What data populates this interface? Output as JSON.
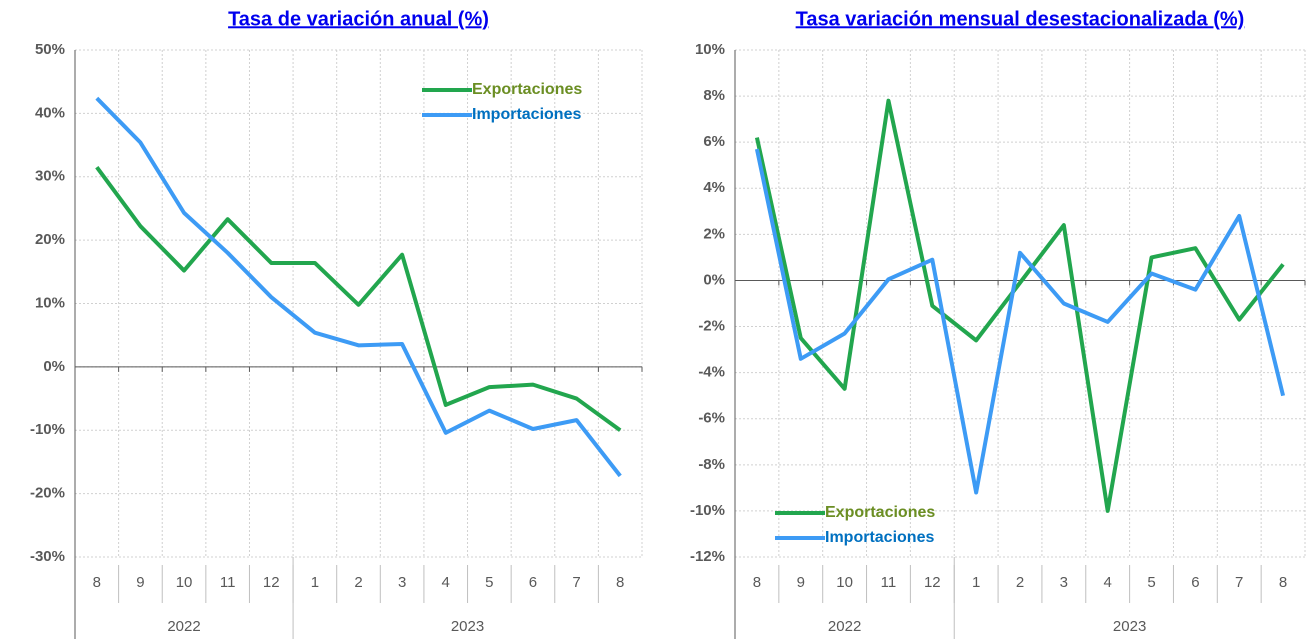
{
  "chart_data": [
    {
      "type": "line",
      "title": "Tasa de variación anual (%)",
      "categories": [
        "8",
        "9",
        "10",
        "11",
        "12",
        "1",
        "2",
        "3",
        "4",
        "5",
        "6",
        "7",
        "8"
      ],
      "groups": [
        {
          "name": "2022",
          "count": 5
        },
        {
          "name": "2023",
          "count": 8
        }
      ],
      "series": [
        {
          "name": "Exportaciones",
          "color": "#22a64e",
          "label_color": "#6b8e23",
          "values": [
            31.5,
            22.2,
            15.2,
            23.3,
            16.4,
            16.4,
            9.8,
            17.7,
            -6.0,
            -3.2,
            -2.8,
            -5.0,
            -10.0
          ]
        },
        {
          "name": "Importaciones",
          "color": "#3d9bf5",
          "label_color": "#0070c0",
          "values": [
            42.4,
            35.4,
            24.3,
            18.0,
            11.0,
            5.4,
            3.4,
            3.6,
            -10.4,
            -6.9,
            -9.8,
            -8.4,
            -17.2
          ]
        }
      ],
      "ylim": [
        -30,
        50
      ],
      "yticks": [
        {
          "value": -30,
          "label": "-30%"
        },
        {
          "value": -20,
          "label": "-20%"
        },
        {
          "value": -10,
          "label": "-10%"
        },
        {
          "value": 0,
          "label": "0%"
        },
        {
          "value": 10,
          "label": "10%"
        },
        {
          "value": 20,
          "label": "20%"
        },
        {
          "value": 30,
          "label": "30%"
        },
        {
          "value": 40,
          "label": "40%"
        },
        {
          "value": 50,
          "label": "50%"
        }
      ],
      "grid": true,
      "legend": "upper right"
    },
    {
      "type": "line",
      "title": "Tasa variación mensual desestacionalizada (%)",
      "categories": [
        "8",
        "9",
        "10",
        "11",
        "12",
        "1",
        "2",
        "3",
        "4",
        "5",
        "6",
        "7",
        "8"
      ],
      "groups": [
        {
          "name": "2022",
          "count": 5
        },
        {
          "name": "2023",
          "count": 8
        }
      ],
      "series": [
        {
          "name": "Exportaciones",
          "color": "#22a64e",
          "label_color": "#6b8e23",
          "values": [
            6.2,
            -2.5,
            -4.7,
            7.8,
            -1.1,
            -2.6,
            -0.1,
            2.4,
            -10.0,
            1.0,
            1.4,
            -1.7,
            0.7
          ]
        },
        {
          "name": "Importaciones",
          "color": "#3d9bf5",
          "label_color": "#0070c0",
          "values": [
            5.7,
            -3.4,
            -2.3,
            0.05,
            0.9,
            -9.2,
            1.2,
            -1.0,
            -1.8,
            0.3,
            -0.4,
            2.8,
            -5.0
          ]
        }
      ],
      "ylim": [
        -12,
        10
      ],
      "yticks": [
        {
          "value": -12,
          "label": "-12%"
        },
        {
          "value": -10,
          "label": "-10%"
        },
        {
          "value": -8,
          "label": "-8%"
        },
        {
          "value": -6,
          "label": "-6%"
        },
        {
          "value": -4,
          "label": "-4%"
        },
        {
          "value": -2,
          "label": "-2%"
        },
        {
          "value": 0,
          "label": "0%"
        },
        {
          "value": 2,
          "label": "2%"
        },
        {
          "value": 4,
          "label": "4%"
        },
        {
          "value": 6,
          "label": "6%"
        },
        {
          "value": 8,
          "label": "8%"
        },
        {
          "value": 10,
          "label": "10%"
        }
      ],
      "grid": true,
      "legend": "lower left"
    }
  ]
}
